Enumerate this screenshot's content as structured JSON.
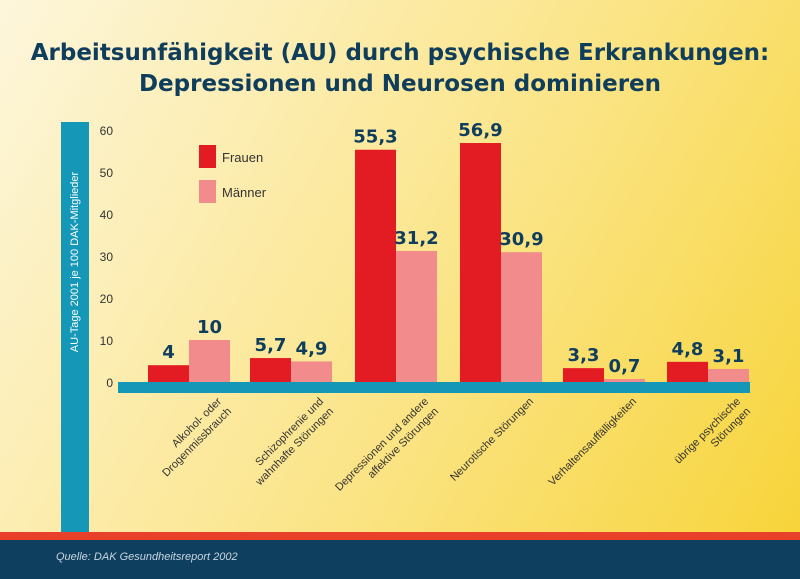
{
  "header": {
    "title_line1": "Arbeitsunfähigkeit (AU) durch psychische Erkrankungen:",
    "title_line2": "Depressionen und Neurosen dominieren"
  },
  "colors": {
    "frauen": "#e31b23",
    "maenner": "#f28b8b",
    "axis_band": "#1597b8",
    "footer": "#0f3f5e"
  },
  "chart_data": {
    "type": "bar",
    "title": "Arbeitsunfähigkeit (AU) durch psychische Erkrankungen: Depressionen und Neurosen dominieren",
    "ylabel": "AU-Tage 2001 je 100 DAK-Mitglieder",
    "ylim": [
      0,
      60
    ],
    "yticks": [
      "0",
      "10",
      "20",
      "30",
      "40",
      "50",
      "60"
    ],
    "legend_position": "top-left",
    "categories": [
      [
        "Alkohol- oder",
        "Drogenmissbrauch"
      ],
      [
        "Schizophrenie und",
        "wahnhafte Störungen"
      ],
      [
        "Depressionen und andere",
        "affektive Störungen"
      ],
      [
        "Neurotische Störungen"
      ],
      [
        "Verhaltensauffälligkeiten"
      ],
      [
        "übrige psychische",
        "Störungen"
      ]
    ],
    "series": [
      {
        "name": "Frauen",
        "values": [
          4,
          5.7,
          55.3,
          56.9,
          3.3,
          4.8
        ],
        "labels": [
          "4",
          "5,7",
          "55,3",
          "56,9",
          "3,3",
          "4,8"
        ]
      },
      {
        "name": "Männer",
        "values": [
          10,
          4.9,
          31.2,
          30.9,
          0.7,
          3.1
        ],
        "labels": [
          "10",
          "4,9",
          "31,2",
          "30,9",
          "0,7",
          "3,1"
        ]
      }
    ]
  },
  "footer": {
    "source": "Quelle: DAK Gesundheitsreport 2002"
  }
}
